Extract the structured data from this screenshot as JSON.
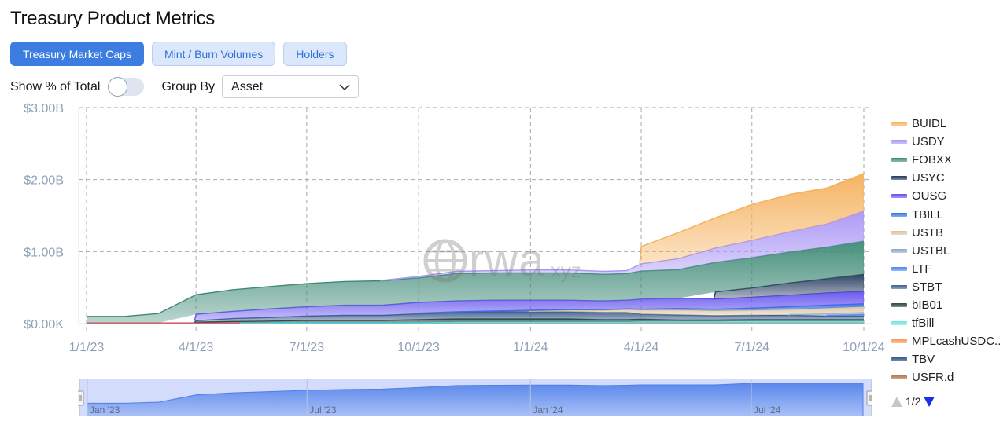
{
  "page": {
    "title": "Treasury Product Metrics"
  },
  "tabs": [
    {
      "label": "Treasury Market Caps",
      "active": true
    },
    {
      "label": "Mint / Burn Volumes",
      "active": false
    },
    {
      "label": "Holders",
      "active": false
    }
  ],
  "controls": {
    "show_pct_label": "Show % of Total",
    "show_pct_on": false,
    "group_by_label": "Group By",
    "group_by_value": "Asset"
  },
  "watermark": {
    "text": "rwa",
    "suffix": ".xyz"
  },
  "legend": {
    "items": [
      {
        "name": "BUIDL",
        "color": "#f5b05a"
      },
      {
        "name": "USDY",
        "color": "#a995f5"
      },
      {
        "name": "FOBXX",
        "color": "#3e8a76"
      },
      {
        "name": "USYC",
        "color": "#243a5e"
      },
      {
        "name": "OUSG",
        "color": "#6454ee"
      },
      {
        "name": "TBILL",
        "color": "#3573e6"
      },
      {
        "name": "USTB",
        "color": "#d9c2a0"
      },
      {
        "name": "USTBL",
        "color": "#8faacb"
      },
      {
        "name": "LTF",
        "color": "#4f86ee"
      },
      {
        "name": "STBT",
        "color": "#3e5f8c"
      },
      {
        "name": "bIB01",
        "color": "#2c4a3a"
      },
      {
        "name": "tfBill",
        "color": "#6fe8de"
      },
      {
        "name": "MPLcashUSDC..",
        "color": "#f49a5a"
      },
      {
        "name": "TBV",
        "color": "#2f5587"
      },
      {
        "name": "USFR.d",
        "color": "#b07850"
      }
    ],
    "pager": "1/2"
  },
  "navigator": {
    "labels": [
      "Jan '23",
      "Jul '23",
      "Jan '24",
      "Jul '24"
    ]
  },
  "chart_data": {
    "type": "area",
    "stacked": true,
    "title": "Treasury Market Caps",
    "xlabel": "",
    "ylabel": "",
    "ylim": [
      0,
      3000000000
    ],
    "y_ticks": [
      "$0.00K",
      "$1.00B",
      "$2.00B",
      "$3.00B"
    ],
    "x_ticks": [
      "1/1/23",
      "4/1/23",
      "7/1/23",
      "10/1/23",
      "1/1/24",
      "4/1/24",
      "7/1/24",
      "10/1/24"
    ],
    "grid": true,
    "legend_position": "right",
    "x": [
      "2023-01-01",
      "2023-02-01",
      "2023-03-01",
      "2023-04-01",
      "2023-05-01",
      "2023-06-01",
      "2023-07-01",
      "2023-08-01",
      "2023-09-01",
      "2023-10-01",
      "2023-11-01",
      "2023-12-01",
      "2024-01-01",
      "2024-02-01",
      "2024-03-01",
      "2024-03-20",
      "2024-04-01",
      "2024-05-01",
      "2024-06-01",
      "2024-07-01",
      "2024-08-01",
      "2024-09-01",
      "2024-10-01"
    ],
    "units": "USD billions",
    "series": [
      {
        "name": "USFR.d",
        "values": [
          0.01,
          0.01,
          0.01,
          0.01,
          0.01,
          0.01,
          0.01,
          0.01,
          0.01,
          0.01,
          0.01,
          0.01,
          0.01,
          0.01,
          0.01,
          0.01,
          0.01,
          0.01,
          0.01,
          0.01,
          0.01,
          0.01,
          0.01
        ]
      },
      {
        "name": "TBV",
        "values": [
          0,
          0,
          0,
          0,
          0,
          0,
          0,
          0,
          0,
          0,
          0,
          0,
          0,
          0,
          0,
          0,
          0,
          0,
          0,
          0,
          0,
          0,
          0
        ]
      },
      {
        "name": "MPLcashUSDC..",
        "values": [
          0,
          0,
          0,
          0,
          0,
          0,
          0,
          0,
          0,
          0,
          0.01,
          0.01,
          0.01,
          0.01,
          0.01,
          0.01,
          0.01,
          0.01,
          0.01,
          0.01,
          0.01,
          0.01,
          0.01
        ]
      },
      {
        "name": "tfBill",
        "values": [
          0,
          0,
          0,
          0,
          0,
          0.005,
          0.005,
          0.005,
          0.005,
          0.005,
          0.005,
          0.005,
          0.005,
          0.005,
          0.005,
          0.005,
          0.01,
          0.01,
          0.01,
          0.015,
          0.015,
          0.015,
          0.015
        ]
      },
      {
        "name": "bIB01",
        "values": [
          0,
          0,
          0,
          0.01,
          0.02,
          0.02,
          0.03,
          0.03,
          0.03,
          0.04,
          0.04,
          0.04,
          0.04,
          0.04,
          0.03,
          0.03,
          0.03,
          0.02,
          0.02,
          0.02,
          0.02,
          0.02,
          0.02
        ]
      },
      {
        "name": "STBT",
        "values": [
          0,
          0,
          0,
          0.02,
          0.04,
          0.05,
          0.06,
          0.07,
          0.07,
          0.08,
          0.09,
          0.1,
          0.1,
          0.1,
          0.1,
          0.1,
          0.07,
          0.07,
          0.06,
          0.06,
          0.06,
          0.05,
          0.05
        ]
      },
      {
        "name": "LTF",
        "values": [
          0,
          0,
          0,
          0,
          0,
          0,
          0,
          0,
          0,
          0,
          0,
          0,
          0,
          0,
          0,
          0,
          0,
          0,
          0,
          0,
          0,
          0.01,
          0.02
        ]
      },
      {
        "name": "USTBL",
        "values": [
          0,
          0,
          0,
          0,
          0,
          0,
          0,
          0,
          0,
          0,
          0,
          0,
          0,
          0,
          0,
          0,
          0,
          0,
          0,
          0,
          0.01,
          0.02,
          0.03
        ]
      },
      {
        "name": "USTB",
        "values": [
          0,
          0,
          0,
          0,
          0,
          0,
          0,
          0,
          0,
          0,
          0,
          0,
          0.01,
          0.02,
          0.03,
          0.04,
          0.06,
          0.07,
          0.07,
          0.07,
          0.07,
          0.08,
          0.08
        ]
      },
      {
        "name": "TBILL",
        "values": [
          0,
          0,
          0,
          0,
          0,
          0,
          0,
          0,
          0,
          0.01,
          0.01,
          0.01,
          0.01,
          0.01,
          0.01,
          0.01,
          0.01,
          0.02,
          0.02,
          0.03,
          0.04,
          0.04,
          0.04
        ]
      },
      {
        "name": "OUSG",
        "values": [
          0,
          0,
          0,
          0.09,
          0.1,
          0.12,
          0.13,
          0.14,
          0.14,
          0.15,
          0.15,
          0.15,
          0.14,
          0.13,
          0.12,
          0.12,
          0.14,
          0.14,
          0.14,
          0.15,
          0.16,
          0.17,
          0.17
        ]
      },
      {
        "name": "USYC",
        "values": [
          0,
          0,
          0,
          0,
          0,
          0,
          0,
          0,
          0,
          0,
          0,
          0,
          0,
          0,
          0,
          0,
          0,
          0,
          0.1,
          0.13,
          0.17,
          0.2,
          0.24
        ]
      },
      {
        "name": "FOBXX",
        "values": [
          0.09,
          0.09,
          0.13,
          0.27,
          0.3,
          0.31,
          0.32,
          0.33,
          0.34,
          0.34,
          0.38,
          0.38,
          0.38,
          0.38,
          0.37,
          0.37,
          0.39,
          0.4,
          0.41,
          0.42,
          0.43,
          0.44,
          0.46
        ]
      },
      {
        "name": "USDY",
        "values": [
          0,
          0,
          0,
          0,
          0,
          0,
          0,
          0,
          0.005,
          0.02,
          0.03,
          0.03,
          0.04,
          0.04,
          0.04,
          0.04,
          0.1,
          0.15,
          0.2,
          0.24,
          0.28,
          0.32,
          0.42
        ]
      },
      {
        "name": "BUIDL",
        "values": [
          0,
          0,
          0,
          0,
          0,
          0,
          0,
          0,
          0,
          0,
          0,
          0,
          0,
          0,
          0,
          0,
          0.24,
          0.36,
          0.42,
          0.5,
          0.52,
          0.5,
          0.52
        ]
      }
    ]
  }
}
